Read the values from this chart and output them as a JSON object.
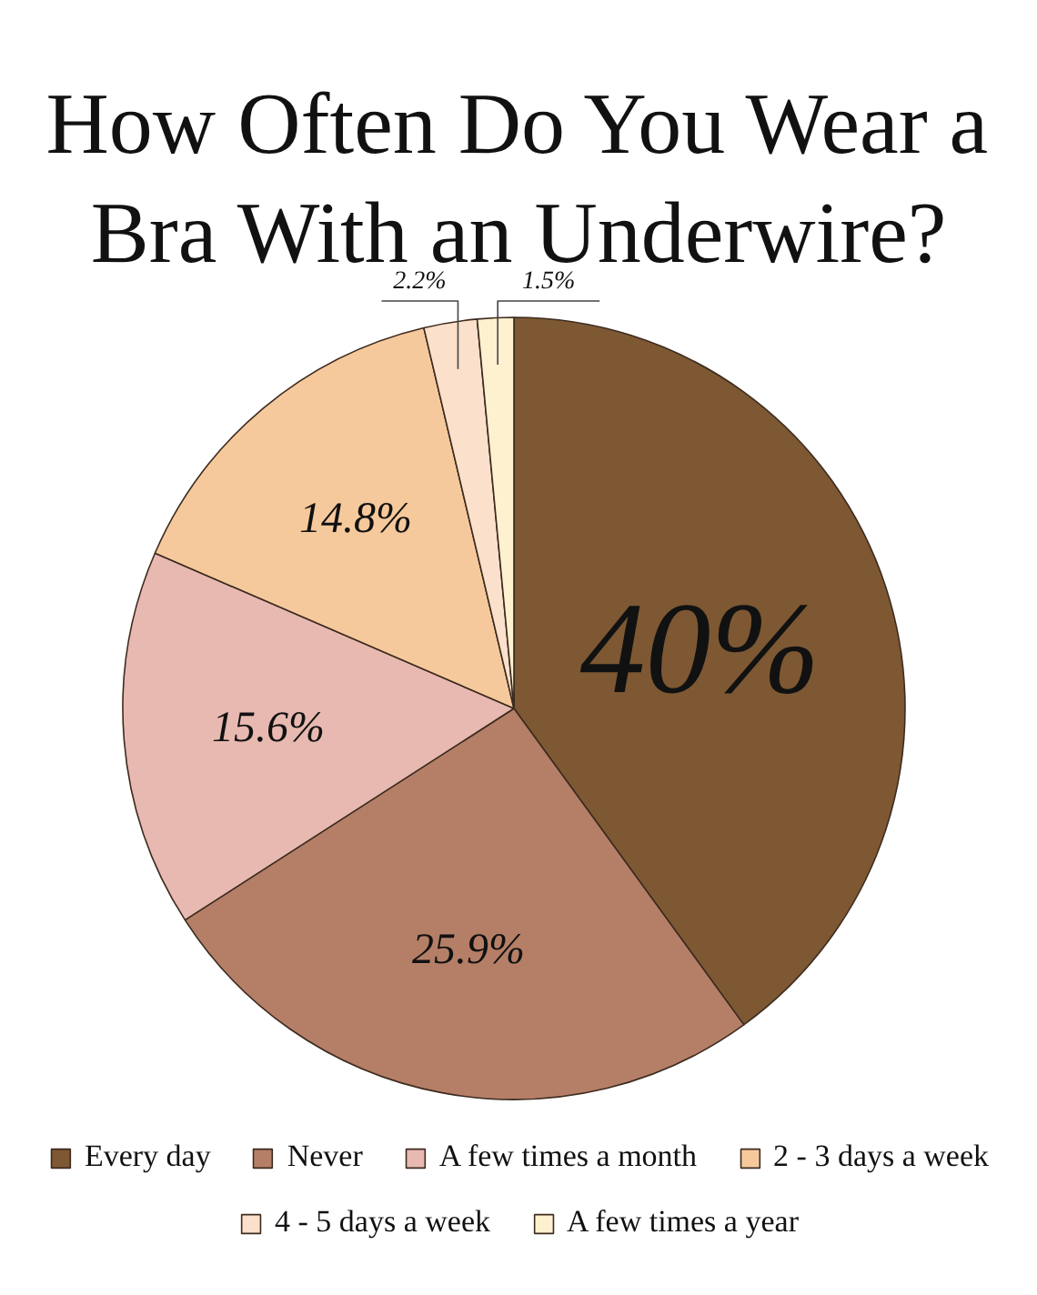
{
  "chart_data": {
    "type": "pie",
    "title": "How Often Do You Wear a Bra With an Underwire?",
    "categories": [
      "Every day",
      "Never",
      "A few times a month",
      "2 - 3 days a week",
      "4 - 5 days a week",
      "A few times a year"
    ],
    "values": [
      40,
      25.9,
      15.6,
      14.8,
      2.2,
      1.5
    ],
    "colors": [
      "#7d5833",
      "#b57f67",
      "#e7b9b0",
      "#f6c99c",
      "#fbe0cb",
      "#fef1d0"
    ],
    "value_labels": [
      "40%",
      "25.9%",
      "15.6%",
      "14.8%",
      "2.2%",
      "1.5%"
    ],
    "legend": "bottom"
  }
}
